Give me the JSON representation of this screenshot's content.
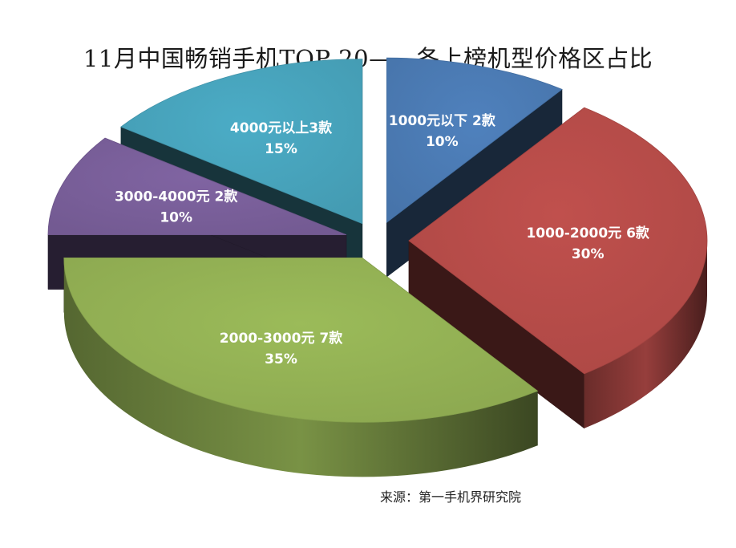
{
  "chart_data": {
    "type": "pie",
    "style": "3d-exploded",
    "title": "11月中国畅销手机TOP 20——各上榜机型价格区占比",
    "source": "来源：第一手机界研究院",
    "slices": [
      {
        "name": "1000元以下 2款",
        "percent_label": "10%",
        "value": 10,
        "count": 2,
        "color": "#4f81bd"
      },
      {
        "name": "1000-2000元 6款",
        "percent_label": "30%",
        "value": 30,
        "count": 6,
        "color": "#c0504d"
      },
      {
        "name": "2000-3000元 7款",
        "percent_label": "35%",
        "value": 35,
        "count": 7,
        "color": "#9bbb59"
      },
      {
        "name": "3000-4000元 2款",
        "percent_label": "10%",
        "value": 10,
        "count": 2,
        "color": "#8064a2"
      },
      {
        "name": "4000元以上3款",
        "percent_label": "15%",
        "value": 15,
        "count": 3,
        "color": "#4bacc6"
      }
    ]
  }
}
